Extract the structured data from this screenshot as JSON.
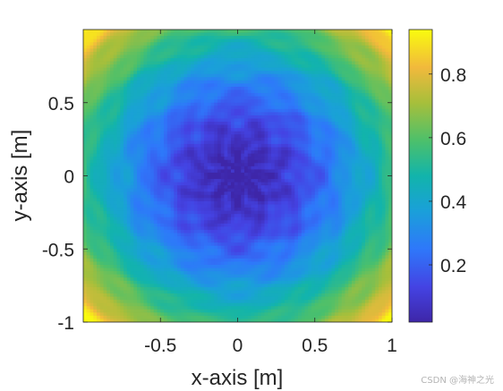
{
  "chart_data": {
    "type": "heatmap",
    "title": "",
    "xlabel": "x-axis [m]",
    "ylabel": "y-axis [m]",
    "xlim": [
      -1,
      1
    ],
    "ylim": [
      -1,
      1
    ],
    "x_ticks": [
      -0.5,
      0,
      0.5,
      1
    ],
    "x_tick_labels": [
      "-0.5",
      "0",
      "0.5",
      "1"
    ],
    "y_ticks": [
      -1,
      -0.5,
      0,
      0.5
    ],
    "y_tick_labels": [
      "-1",
      "-0.5",
      "0",
      "0.5"
    ],
    "colorbar": {
      "range": [
        0.02,
        0.94
      ],
      "ticks": [
        0.2,
        0.4,
        0.6,
        0.8
      ],
      "tick_labels": [
        "0.2",
        "0.4",
        "0.6",
        "0.8"
      ],
      "colormap": "parula"
    },
    "field": {
      "description": "radially symmetric interference pattern, minimum at center, rising toward corners",
      "center_value": 0.02,
      "edge_value": 0.6,
      "corner_value": 0.94
    },
    "grid": false,
    "legend": "none"
  },
  "watermark": "CSDN @海神之光"
}
